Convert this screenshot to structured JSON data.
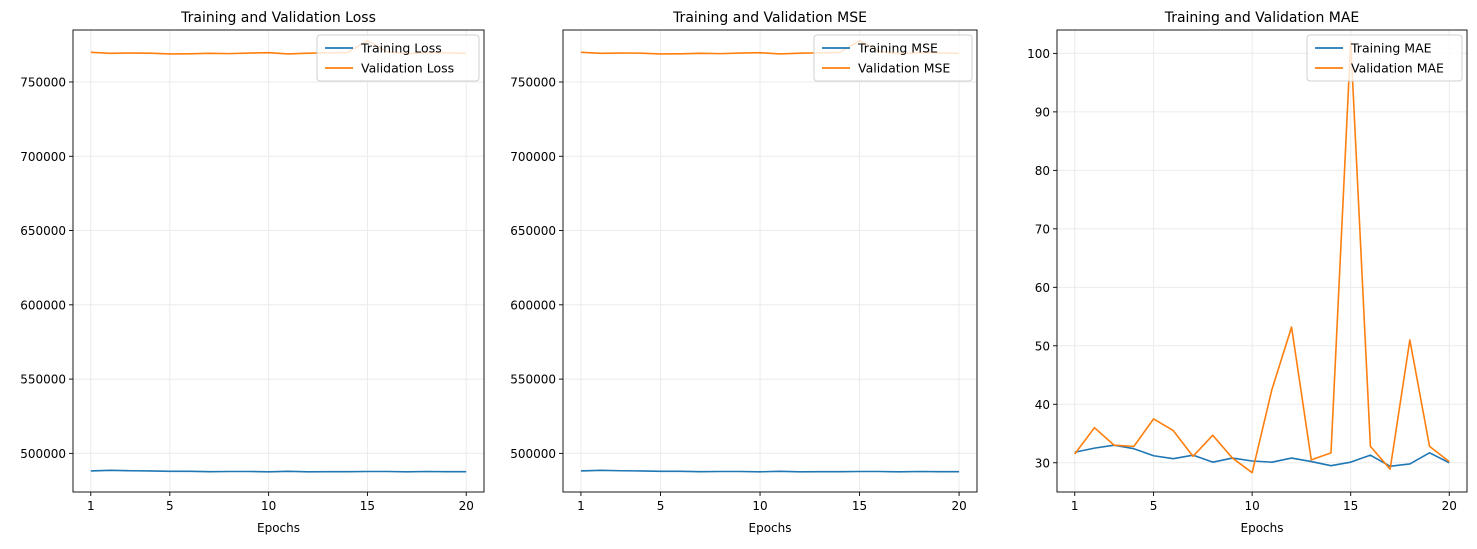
{
  "chart_data": [
    {
      "type": "line",
      "title": "Training and Validation Loss",
      "xlabel": "Epochs",
      "ylabel": "",
      "x": [
        1,
        2,
        3,
        4,
        5,
        6,
        7,
        8,
        9,
        10,
        11,
        12,
        13,
        14,
        15,
        16,
        17,
        18,
        19,
        20
      ],
      "xticks": [
        1,
        5,
        10,
        15,
        20
      ],
      "yticks": [
        500000,
        550000,
        600000,
        650000,
        700000,
        750000
      ],
      "ytick_labels": [
        "500000",
        "550000",
        "600000",
        "650000",
        "700000",
        "750000"
      ],
      "xlim": [
        0.1,
        20.9
      ],
      "ylim": [
        474000,
        785000
      ],
      "grid": true,
      "legend_position": "upper right",
      "series": [
        {
          "name": "Training Loss",
          "color": "#1f77b4",
          "values": [
            488200,
            488600,
            488300,
            488200,
            487900,
            487900,
            487700,
            487800,
            487800,
            487600,
            487900,
            487600,
            487700,
            487700,
            487800,
            487800,
            487600,
            487800,
            487700,
            487700
          ]
        },
        {
          "name": "Validation Loss",
          "color": "#ff7f0e",
          "values": [
            770000,
            769300,
            769500,
            769400,
            768900,
            769000,
            769300,
            769100,
            769500,
            769700,
            768900,
            769400,
            769600,
            769900,
            777800,
            770400,
            769100,
            769800,
            769600,
            769300
          ]
        }
      ]
    },
    {
      "type": "line",
      "title": "Training and Validation MSE",
      "xlabel": "Epochs",
      "ylabel": "",
      "x": [
        1,
        2,
        3,
        4,
        5,
        6,
        7,
        8,
        9,
        10,
        11,
        12,
        13,
        14,
        15,
        16,
        17,
        18,
        19,
        20
      ],
      "xticks": [
        1,
        5,
        10,
        15,
        20
      ],
      "yticks": [
        500000,
        550000,
        600000,
        650000,
        700000,
        750000
      ],
      "ytick_labels": [
        "500000",
        "550000",
        "600000",
        "650000",
        "700000",
        "750000"
      ],
      "xlim": [
        0.1,
        20.9
      ],
      "ylim": [
        474000,
        785000
      ],
      "grid": true,
      "legend_position": "upper right",
      "series": [
        {
          "name": "Training MSE",
          "color": "#1f77b4",
          "values": [
            488200,
            488600,
            488300,
            488200,
            487900,
            487900,
            487700,
            487800,
            487800,
            487600,
            487900,
            487600,
            487700,
            487700,
            487800,
            487800,
            487600,
            487800,
            487700,
            487700
          ]
        },
        {
          "name": "Validation MSE",
          "color": "#ff7f0e",
          "values": [
            770000,
            769300,
            769500,
            769400,
            768900,
            769000,
            769300,
            769100,
            769500,
            769700,
            768900,
            769400,
            769600,
            769900,
            777800,
            770400,
            769100,
            769800,
            769600,
            769300
          ]
        }
      ]
    },
    {
      "type": "line",
      "title": "Training and Validation MAE",
      "xlabel": "Epochs",
      "ylabel": "",
      "x": [
        1,
        2,
        3,
        4,
        5,
        6,
        7,
        8,
        9,
        10,
        11,
        12,
        13,
        14,
        15,
        16,
        17,
        18,
        19,
        20
      ],
      "xticks": [
        1,
        5,
        10,
        15,
        20
      ],
      "yticks": [
        30,
        40,
        50,
        60,
        70,
        80,
        90,
        100
      ],
      "ytick_labels": [
        "30",
        "40",
        "50",
        "60",
        "70",
        "80",
        "90",
        "100"
      ],
      "xlim": [
        0.1,
        20.9
      ],
      "ylim": [
        25,
        104
      ],
      "grid": true,
      "legend_position": "upper right",
      "series": [
        {
          "name": "Training MAE",
          "color": "#1f77b4",
          "values": [
            31.8,
            32.5,
            33.0,
            32.4,
            31.2,
            30.7,
            31.3,
            30.1,
            30.8,
            30.3,
            30.1,
            30.8,
            30.2,
            29.5,
            30.1,
            31.3,
            29.4,
            29.8,
            31.7,
            30.0
          ]
        },
        {
          "name": "Validation MAE",
          "color": "#ff7f0e",
          "values": [
            31.5,
            36.0,
            33.0,
            32.8,
            37.5,
            35.5,
            31.1,
            34.7,
            30.8,
            28.3,
            42.5,
            53.2,
            30.5,
            31.7,
            102.0,
            32.8,
            28.9,
            51.0,
            32.8,
            30.2
          ]
        }
      ]
    }
  ]
}
